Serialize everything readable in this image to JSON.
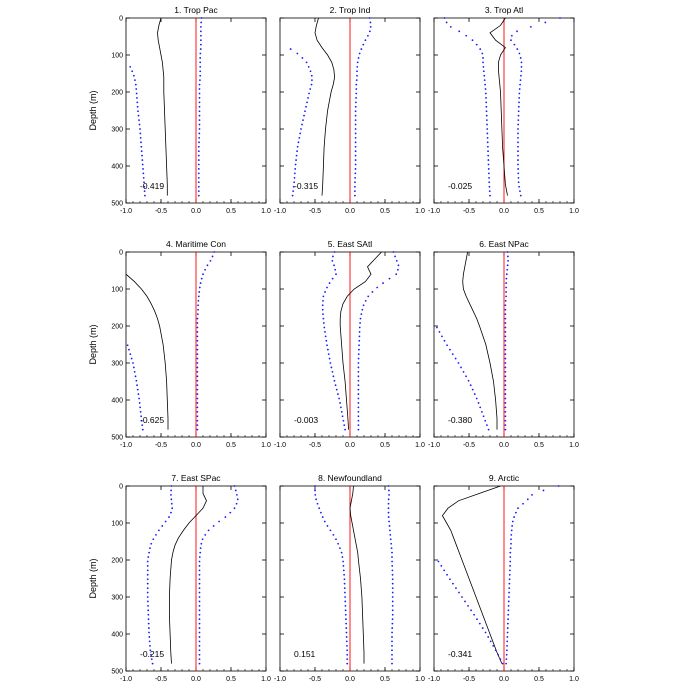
{
  "figure": {
    "ylabel": "Depth (m)"
  },
  "colors": {
    "profile": "#000000",
    "spread": "#1a1aff",
    "zero": "#ff0000",
    "axes": "#000000"
  },
  "chart_data": [
    {
      "type": "line",
      "title": "1. Trop Pac",
      "annotation": "-0.419",
      "xlim": [
        -1.0,
        1.0
      ],
      "ylim": [
        0,
        500
      ],
      "xticks": [
        "-1.0",
        "-0.5",
        "0.0",
        "0.5",
        "1.0"
      ],
      "yticks": [
        "0",
        "100",
        "200",
        "300",
        "400",
        "500"
      ],
      "depth": [
        0,
        20,
        40,
        60,
        80,
        100,
        120,
        140,
        160,
        180,
        200,
        250,
        300,
        350,
        400,
        450,
        480
      ],
      "series": [
        {
          "name": "mean",
          "style": "solid",
          "values": [
            -0.5,
            -0.53,
            -0.55,
            -0.54,
            -0.52,
            -0.5,
            -0.48,
            -0.47,
            -0.46,
            -0.46,
            -0.46,
            -0.45,
            -0.44,
            -0.43,
            -0.42,
            -0.41,
            -0.41
          ]
        },
        {
          "name": "upper",
          "style": "dotted",
          "values": [
            0.08,
            0.07,
            0.07,
            0.07,
            0.07,
            0.06,
            0.06,
            0.06,
            0.06,
            0.05,
            0.05,
            0.05,
            0.05,
            0.04,
            0.04,
            0.04,
            0.04
          ]
        },
        {
          "name": "lower",
          "style": "dotted",
          "values": [
            null,
            null,
            null,
            null,
            null,
            null,
            -0.97,
            -0.92,
            -0.88,
            -0.86,
            -0.85,
            -0.83,
            -0.8,
            -0.78,
            -0.76,
            -0.74,
            -0.73
          ]
        }
      ]
    },
    {
      "type": "line",
      "title": "2. Trop Ind",
      "annotation": "-0.315",
      "xlim": [
        -1.0,
        1.0
      ],
      "ylim": [
        0,
        500
      ],
      "xticks": [
        "-1.0",
        "-0.5",
        "0.0",
        "0.5",
        "1.0"
      ],
      "yticks": [
        "0",
        "100",
        "200",
        "300",
        "400",
        "500"
      ],
      "depth": [
        0,
        20,
        40,
        60,
        80,
        100,
        120,
        140,
        160,
        180,
        200,
        250,
        300,
        350,
        400,
        450,
        480
      ],
      "series": [
        {
          "name": "mean",
          "style": "solid",
          "values": [
            -0.45,
            -0.48,
            -0.5,
            -0.47,
            -0.4,
            -0.32,
            -0.26,
            -0.23,
            -0.22,
            -0.24,
            -0.27,
            -0.32,
            -0.35,
            -0.37,
            -0.38,
            -0.39,
            -0.4
          ]
        },
        {
          "name": "upper",
          "style": "dotted",
          "values": [
            0.28,
            0.3,
            0.28,
            0.22,
            0.17,
            0.13,
            0.11,
            0.1,
            0.1,
            0.09,
            0.09,
            0.08,
            0.08,
            0.08,
            0.08,
            0.07,
            0.07
          ]
        },
        {
          "name": "lower",
          "style": "dotted",
          "values": [
            null,
            null,
            null,
            null,
            -0.88,
            -0.72,
            -0.62,
            -0.57,
            -0.54,
            -0.55,
            -0.58,
            -0.64,
            -0.7,
            -0.75,
            -0.78,
            -0.8,
            -0.82
          ]
        }
      ]
    },
    {
      "type": "line",
      "title": "3. Trop Atl",
      "annotation": "-0.025",
      "xlim": [
        -1.0,
        1.0
      ],
      "ylim": [
        0,
        500
      ],
      "xticks": [
        "-1.0",
        "-0.5",
        "0.0",
        "0.5",
        "1.0"
      ],
      "yticks": [
        "0",
        "100",
        "200",
        "300",
        "400",
        "500"
      ],
      "depth": [
        0,
        20,
        40,
        60,
        80,
        100,
        120,
        140,
        160,
        180,
        200,
        250,
        300,
        350,
        400,
        450,
        480
      ],
      "series": [
        {
          "name": "mean",
          "style": "solid",
          "values": [
            0.02,
            -0.05,
            -0.2,
            -0.12,
            0.02,
            -0.05,
            -0.08,
            -0.08,
            -0.07,
            -0.06,
            -0.05,
            -0.04,
            -0.03,
            -0.02,
            0.0,
            0.02,
            0.05
          ]
        },
        {
          "name": "upper",
          "style": "dotted",
          "values": [
            0.8,
            0.45,
            0.12,
            0.1,
            0.18,
            0.23,
            0.25,
            0.25,
            0.24,
            0.23,
            0.22,
            0.21,
            0.2,
            0.2,
            0.2,
            0.21,
            0.24
          ]
        },
        {
          "name": "lower",
          "style": "dotted",
          "values": [
            -0.85,
            -0.8,
            -0.6,
            -0.45,
            -0.35,
            -0.3,
            -0.3,
            -0.29,
            -0.28,
            -0.27,
            -0.26,
            -0.25,
            -0.24,
            -0.23,
            -0.22,
            -0.21,
            -0.2
          ]
        }
      ]
    },
    {
      "type": "line",
      "title": "4. Maritime Con",
      "annotation": "-0.625",
      "xlim": [
        -1.0,
        1.0
      ],
      "ylim": [
        0,
        500
      ],
      "xticks": [
        "-1.0",
        "-0.5",
        "0.0",
        "0.5",
        "1.0"
      ],
      "yticks": [
        "0",
        "100",
        "200",
        "300",
        "400",
        "500"
      ],
      "depth": [
        0,
        20,
        40,
        60,
        80,
        100,
        120,
        140,
        160,
        180,
        200,
        250,
        300,
        350,
        400,
        450,
        480
      ],
      "series": [
        {
          "name": "mean",
          "style": "solid",
          "values": [
            null,
            null,
            null,
            -1.0,
            -0.88,
            -0.78,
            -0.7,
            -0.64,
            -0.59,
            -0.55,
            -0.52,
            -0.47,
            -0.44,
            -0.42,
            -0.41,
            -0.4,
            -0.4
          ]
        },
        {
          "name": "upper",
          "style": "dotted",
          "values": [
            0.26,
            0.22,
            0.15,
            0.1,
            0.07,
            0.05,
            0.04,
            0.03,
            0.03,
            0.02,
            0.02,
            0.02,
            0.02,
            0.02,
            0.02,
            0.02,
            0.02
          ]
        },
        {
          "name": "lower",
          "style": "dotted",
          "values": [
            null,
            null,
            null,
            null,
            null,
            null,
            null,
            null,
            null,
            null,
            null,
            -0.98,
            -0.9,
            -0.85,
            -0.81,
            -0.78,
            -0.76
          ]
        }
      ]
    },
    {
      "type": "line",
      "title": "5. East SAtl",
      "annotation": "-0.003",
      "xlim": [
        -1.0,
        1.0
      ],
      "ylim": [
        0,
        500
      ],
      "xticks": [
        "-1.0",
        "-0.5",
        "0.0",
        "0.5",
        "1.0"
      ],
      "yticks": [
        "0",
        "100",
        "200",
        "300",
        "400",
        "500"
      ],
      "depth": [
        0,
        20,
        40,
        60,
        80,
        100,
        120,
        140,
        160,
        180,
        200,
        250,
        300,
        350,
        400,
        450,
        480
      ],
      "series": [
        {
          "name": "mean",
          "style": "solid",
          "values": [
            0.45,
            0.35,
            0.25,
            0.3,
            0.22,
            0.06,
            -0.04,
            -0.1,
            -0.13,
            -0.14,
            -0.14,
            -0.12,
            -0.1,
            -0.07,
            -0.05,
            -0.03,
            -0.02
          ]
        },
        {
          "name": "upper",
          "style": "dotted",
          "values": [
            0.62,
            0.66,
            0.7,
            0.66,
            0.5,
            0.36,
            0.26,
            0.2,
            0.17,
            0.15,
            0.14,
            0.13,
            0.12,
            0.12,
            0.12,
            0.12,
            0.12
          ]
        },
        {
          "name": "lower",
          "style": "dotted",
          "values": [
            -0.22,
            -0.26,
            -0.22,
            -0.2,
            -0.28,
            -0.34,
            -0.38,
            -0.39,
            -0.39,
            -0.38,
            -0.37,
            -0.33,
            -0.28,
            -0.22,
            -0.15,
            -0.1,
            -0.07
          ]
        }
      ]
    },
    {
      "type": "line",
      "title": "6. East NPac",
      "annotation": "-0.380",
      "xlim": [
        -1.0,
        1.0
      ],
      "ylim": [
        0,
        500
      ],
      "xticks": [
        "-1.0",
        "-0.5",
        "0.0",
        "0.5",
        "1.0"
      ],
      "yticks": [
        "0",
        "100",
        "200",
        "300",
        "400",
        "500"
      ],
      "depth": [
        0,
        20,
        40,
        60,
        80,
        100,
        120,
        140,
        160,
        180,
        200,
        250,
        300,
        350,
        400,
        450,
        480
      ],
      "series": [
        {
          "name": "mean",
          "style": "solid",
          "values": [
            -0.52,
            -0.54,
            -0.56,
            -0.58,
            -0.59,
            -0.58,
            -0.54,
            -0.49,
            -0.44,
            -0.39,
            -0.35,
            -0.26,
            -0.2,
            -0.15,
            -0.12,
            -0.1,
            -0.1
          ]
        },
        {
          "name": "upper",
          "style": "dotted",
          "values": [
            0.05,
            0.06,
            0.05,
            0.04,
            0.03,
            0.03,
            0.03,
            0.02,
            0.02,
            0.02,
            0.02,
            0.02,
            0.02,
            0.02,
            0.02,
            0.02,
            0.02
          ]
        },
        {
          "name": "lower",
          "style": "dotted",
          "values": [
            null,
            null,
            null,
            null,
            null,
            null,
            null,
            null,
            null,
            null,
            -0.97,
            -0.82,
            -0.65,
            -0.5,
            -0.38,
            -0.28,
            -0.22
          ]
        }
      ]
    },
    {
      "type": "line",
      "title": "7. East SPac",
      "annotation": "-0.215",
      "xlim": [
        -1.0,
        1.0
      ],
      "ylim": [
        0,
        500
      ],
      "xticks": [
        "-1.0",
        "-0.5",
        "0.0",
        "0.5",
        "1.0"
      ],
      "yticks": [
        "0",
        "100",
        "200",
        "300",
        "400",
        "500"
      ],
      "depth": [
        0,
        20,
        40,
        60,
        80,
        100,
        120,
        140,
        160,
        180,
        200,
        250,
        300,
        350,
        400,
        450,
        480
      ],
      "series": [
        {
          "name": "mean",
          "style": "solid",
          "values": [
            0.1,
            0.1,
            0.15,
            0.1,
            0.0,
            -0.1,
            -0.18,
            -0.25,
            -0.3,
            -0.33,
            -0.35,
            -0.37,
            -0.38,
            -0.38,
            -0.37,
            -0.36,
            -0.35
          ]
        },
        {
          "name": "upper",
          "style": "dotted",
          "values": [
            0.55,
            0.58,
            0.6,
            0.55,
            0.45,
            0.3,
            0.18,
            0.1,
            0.07,
            0.06,
            0.05,
            0.05,
            0.05,
            0.05,
            0.05,
            0.05,
            0.05
          ]
        },
        {
          "name": "lower",
          "style": "dotted",
          "values": [
            -0.35,
            -0.36,
            -0.35,
            -0.34,
            -0.37,
            -0.45,
            -0.53,
            -0.6,
            -0.65,
            -0.67,
            -0.69,
            -0.69,
            -0.69,
            -0.68,
            -0.67,
            -0.65,
            -0.62
          ]
        }
      ]
    },
    {
      "type": "line",
      "title": "8. Newfoundland",
      "annotation": "0.151",
      "xlim": [
        -1.0,
        1.0
      ],
      "ylim": [
        0,
        500
      ],
      "xticks": [
        "-1.0",
        "-0.5",
        "0.0",
        "0.5",
        "1.0"
      ],
      "yticks": [
        "0",
        "100",
        "200",
        "300",
        "400",
        "500"
      ],
      "depth": [
        0,
        20,
        40,
        60,
        80,
        100,
        120,
        140,
        160,
        180,
        200,
        250,
        300,
        350,
        400,
        450,
        480
      ],
      "series": [
        {
          "name": "mean",
          "style": "solid",
          "values": [
            0.05,
            0.04,
            0.02,
            0.0,
            0.01,
            0.03,
            0.05,
            0.07,
            0.09,
            0.11,
            0.12,
            0.15,
            0.17,
            0.18,
            0.19,
            0.2,
            0.2
          ]
        },
        {
          "name": "upper",
          "style": "dotted",
          "values": [
            0.55,
            0.56,
            0.55,
            0.55,
            0.55,
            0.56,
            0.57,
            0.58,
            0.59,
            0.6,
            0.6,
            0.61,
            0.61,
            0.61,
            0.6,
            0.6,
            0.6
          ]
        },
        {
          "name": "lower",
          "style": "dotted",
          "values": [
            -0.5,
            -0.5,
            -0.48,
            -0.44,
            -0.4,
            -0.35,
            -0.28,
            -0.21,
            -0.16,
            -0.12,
            -0.1,
            -0.08,
            -0.07,
            -0.06,
            -0.05,
            -0.04,
            -0.04
          ]
        }
      ]
    },
    {
      "type": "line",
      "title": "9. Arctic",
      "annotation": "-0.341",
      "xlim": [
        -1.0,
        1.0
      ],
      "ylim": [
        0,
        500
      ],
      "xticks": [
        "-1.0",
        "-0.5",
        "0.0",
        "0.5",
        "1.0"
      ],
      "yticks": [
        "0",
        "100",
        "200",
        "300",
        "400",
        "500"
      ],
      "depth": [
        0,
        20,
        40,
        60,
        80,
        100,
        120,
        140,
        160,
        180,
        200,
        250,
        300,
        350,
        400,
        450,
        480
      ],
      "series": [
        {
          "name": "mean",
          "style": "solid",
          "values": [
            -0.05,
            -0.35,
            -0.65,
            -0.8,
            -0.88,
            -0.82,
            -0.76,
            -0.72,
            -0.68,
            -0.64,
            -0.6,
            -0.5,
            -0.4,
            -0.3,
            -0.2,
            -0.1,
            -0.03
          ]
        },
        {
          "name": "upper",
          "style": "dotted",
          "values": [
            0.78,
            0.42,
            0.32,
            0.2,
            0.15,
            0.12,
            0.11,
            0.1,
            0.1,
            0.09,
            0.09,
            0.08,
            0.07,
            0.06,
            0.05,
            0.04,
            0.03
          ]
        },
        {
          "name": "lower",
          "style": "dotted",
          "values": [
            null,
            null,
            null,
            null,
            null,
            null,
            null,
            null,
            null,
            null,
            -0.95,
            -0.78,
            -0.6,
            -0.42,
            -0.25,
            -0.1,
            -0.02
          ]
        }
      ]
    }
  ]
}
